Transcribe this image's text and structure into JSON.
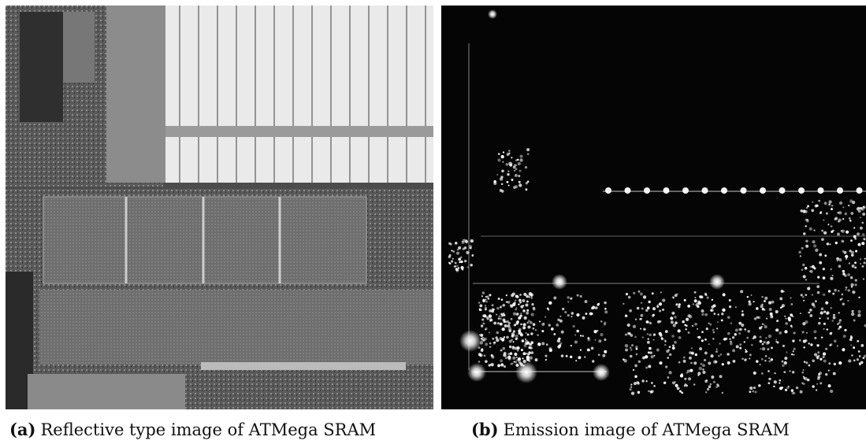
{
  "figure": {
    "panels": [
      {
        "label": "(a)",
        "caption": "Reflective type image of ATMega SRAM"
      },
      {
        "label": "(b)",
        "caption": "Emission image of ATMega SRAM"
      }
    ]
  }
}
